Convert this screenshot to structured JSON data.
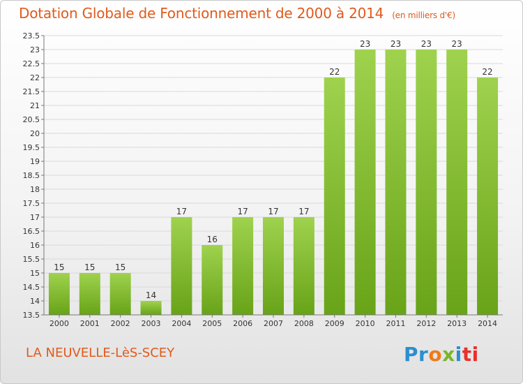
{
  "header": {
    "title": "Dotation Globale de Fonctionnement de 2000 à 2014",
    "subtitle": "(en milliers d'€)"
  },
  "footer": {
    "commune": "LA NEUVELLE-LèS-SCEY",
    "logo": [
      "Pr",
      "o",
      "x",
      "i",
      "ti"
    ]
  },
  "colors": {
    "title": "#e05a1c",
    "bar_light": "#9fd24e",
    "bar_dark": "#68a318",
    "logo_blue": "#2a8fd0",
    "logo_orange": "#f07b19",
    "logo_green": "#7bb52a",
    "logo_red": "#e8312c"
  },
  "chart_data": {
    "type": "bar",
    "title": "Dotation Globale de Fonctionnement de 2000 à 2014",
    "subtitle": "(en milliers d'€)",
    "categories": [
      "2000",
      "2001",
      "2002",
      "2003",
      "2004",
      "2005",
      "2006",
      "2007",
      "2008",
      "2009",
      "2010",
      "2011",
      "2012",
      "2013",
      "2014"
    ],
    "values": [
      15,
      15,
      15,
      14,
      17,
      16,
      17,
      17,
      17,
      22,
      23,
      23,
      23,
      23,
      22
    ],
    "ylim": [
      13.5,
      23.5
    ],
    "yticks": [
      "13.5",
      "14",
      "14.5",
      "15",
      "15.5",
      "16",
      "16.5",
      "17",
      "17.5",
      "18",
      "18.5",
      "19",
      "19.5",
      "20",
      "20.5",
      "21",
      "21.5",
      "22",
      "22.5",
      "23",
      "23.5"
    ],
    "grid": true,
    "data_labels": true
  }
}
